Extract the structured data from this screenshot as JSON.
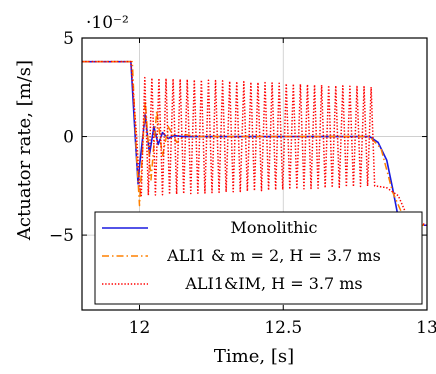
{
  "chart_data": {
    "type": "line",
    "xlabel": "Time, [s]",
    "ylabel": "Actuator rate, [m/s]",
    "y_multiplier": "·10⁻²",
    "xlim": [
      11.8,
      13.0
    ],
    "ylim": [
      -8.8,
      5.0
    ],
    "x_ticks": [
      12,
      12.5,
      13
    ],
    "x_tick_labels": [
      "12",
      "12.5",
      "13"
    ],
    "y_ticks": [
      5,
      0,
      -5
    ],
    "y_tick_labels": [
      "5",
      "0",
      "−5"
    ],
    "grid": true,
    "legend_position": "bottom-center",
    "series": [
      {
        "name": "Monolithic",
        "color": "#1a1adf",
        "style": "solid",
        "x": [
          11.8,
          11.97,
          11.985,
          11.995,
          12.0,
          12.02,
          12.035,
          12.05,
          12.065,
          12.08,
          12.1,
          12.12,
          12.15,
          12.2,
          12.8,
          12.83,
          12.86,
          12.88,
          12.9,
          12.92,
          12.95,
          12.98,
          13.0
        ],
        "values": [
          3.8,
          3.8,
          0.0,
          -2.4,
          -1.5,
          1.1,
          -0.9,
          0.5,
          -0.4,
          0.2,
          -0.1,
          0.05,
          0.0,
          0.0,
          0.0,
          -0.3,
          -1.2,
          -2.6,
          -4.1,
          -4.4,
          -4.5,
          -4.5,
          -4.5
        ]
      },
      {
        "name": "ALI1 & m = 2, H = 3.7 ms",
        "color": "#ff8000",
        "style": "dashdot",
        "x": [
          11.8,
          11.975,
          11.99,
          12.0,
          12.02,
          12.04,
          12.06,
          12.08,
          12.1,
          12.13,
          12.16,
          12.2,
          12.8,
          12.84,
          12.88,
          12.91,
          12.94,
          12.97,
          13.0
        ],
        "values": [
          3.8,
          3.8,
          -1.0,
          -3.5,
          1.8,
          -2.2,
          1.3,
          -1.0,
          0.5,
          -0.3,
          0.1,
          0.0,
          0.0,
          -0.6,
          -2.8,
          -3.8,
          -4.3,
          -4.5,
          -4.5
        ]
      },
      {
        "name": "ALI1&IM, H = 3.7 ms",
        "color": "#ff0000",
        "style": "dotted",
        "x": [
          11.8,
          11.97,
          11.99,
          12.0,
          12.8,
          12.82,
          12.86,
          12.9,
          12.93,
          12.96,
          13.0
        ],
        "values": [
          3.8,
          3.8,
          0.0,
          -2.5,
          null,
          -2.5,
          -2.6,
          -3.0,
          -4.0,
          -4.3,
          -4.5
        ],
        "oscillation": {
          "x_start": 12.0,
          "x_end": 12.82,
          "period": 0.0246,
          "amplitude_start": 3.0,
          "amplitude_end": 2.5,
          "center": 0.0
        }
      }
    ]
  }
}
